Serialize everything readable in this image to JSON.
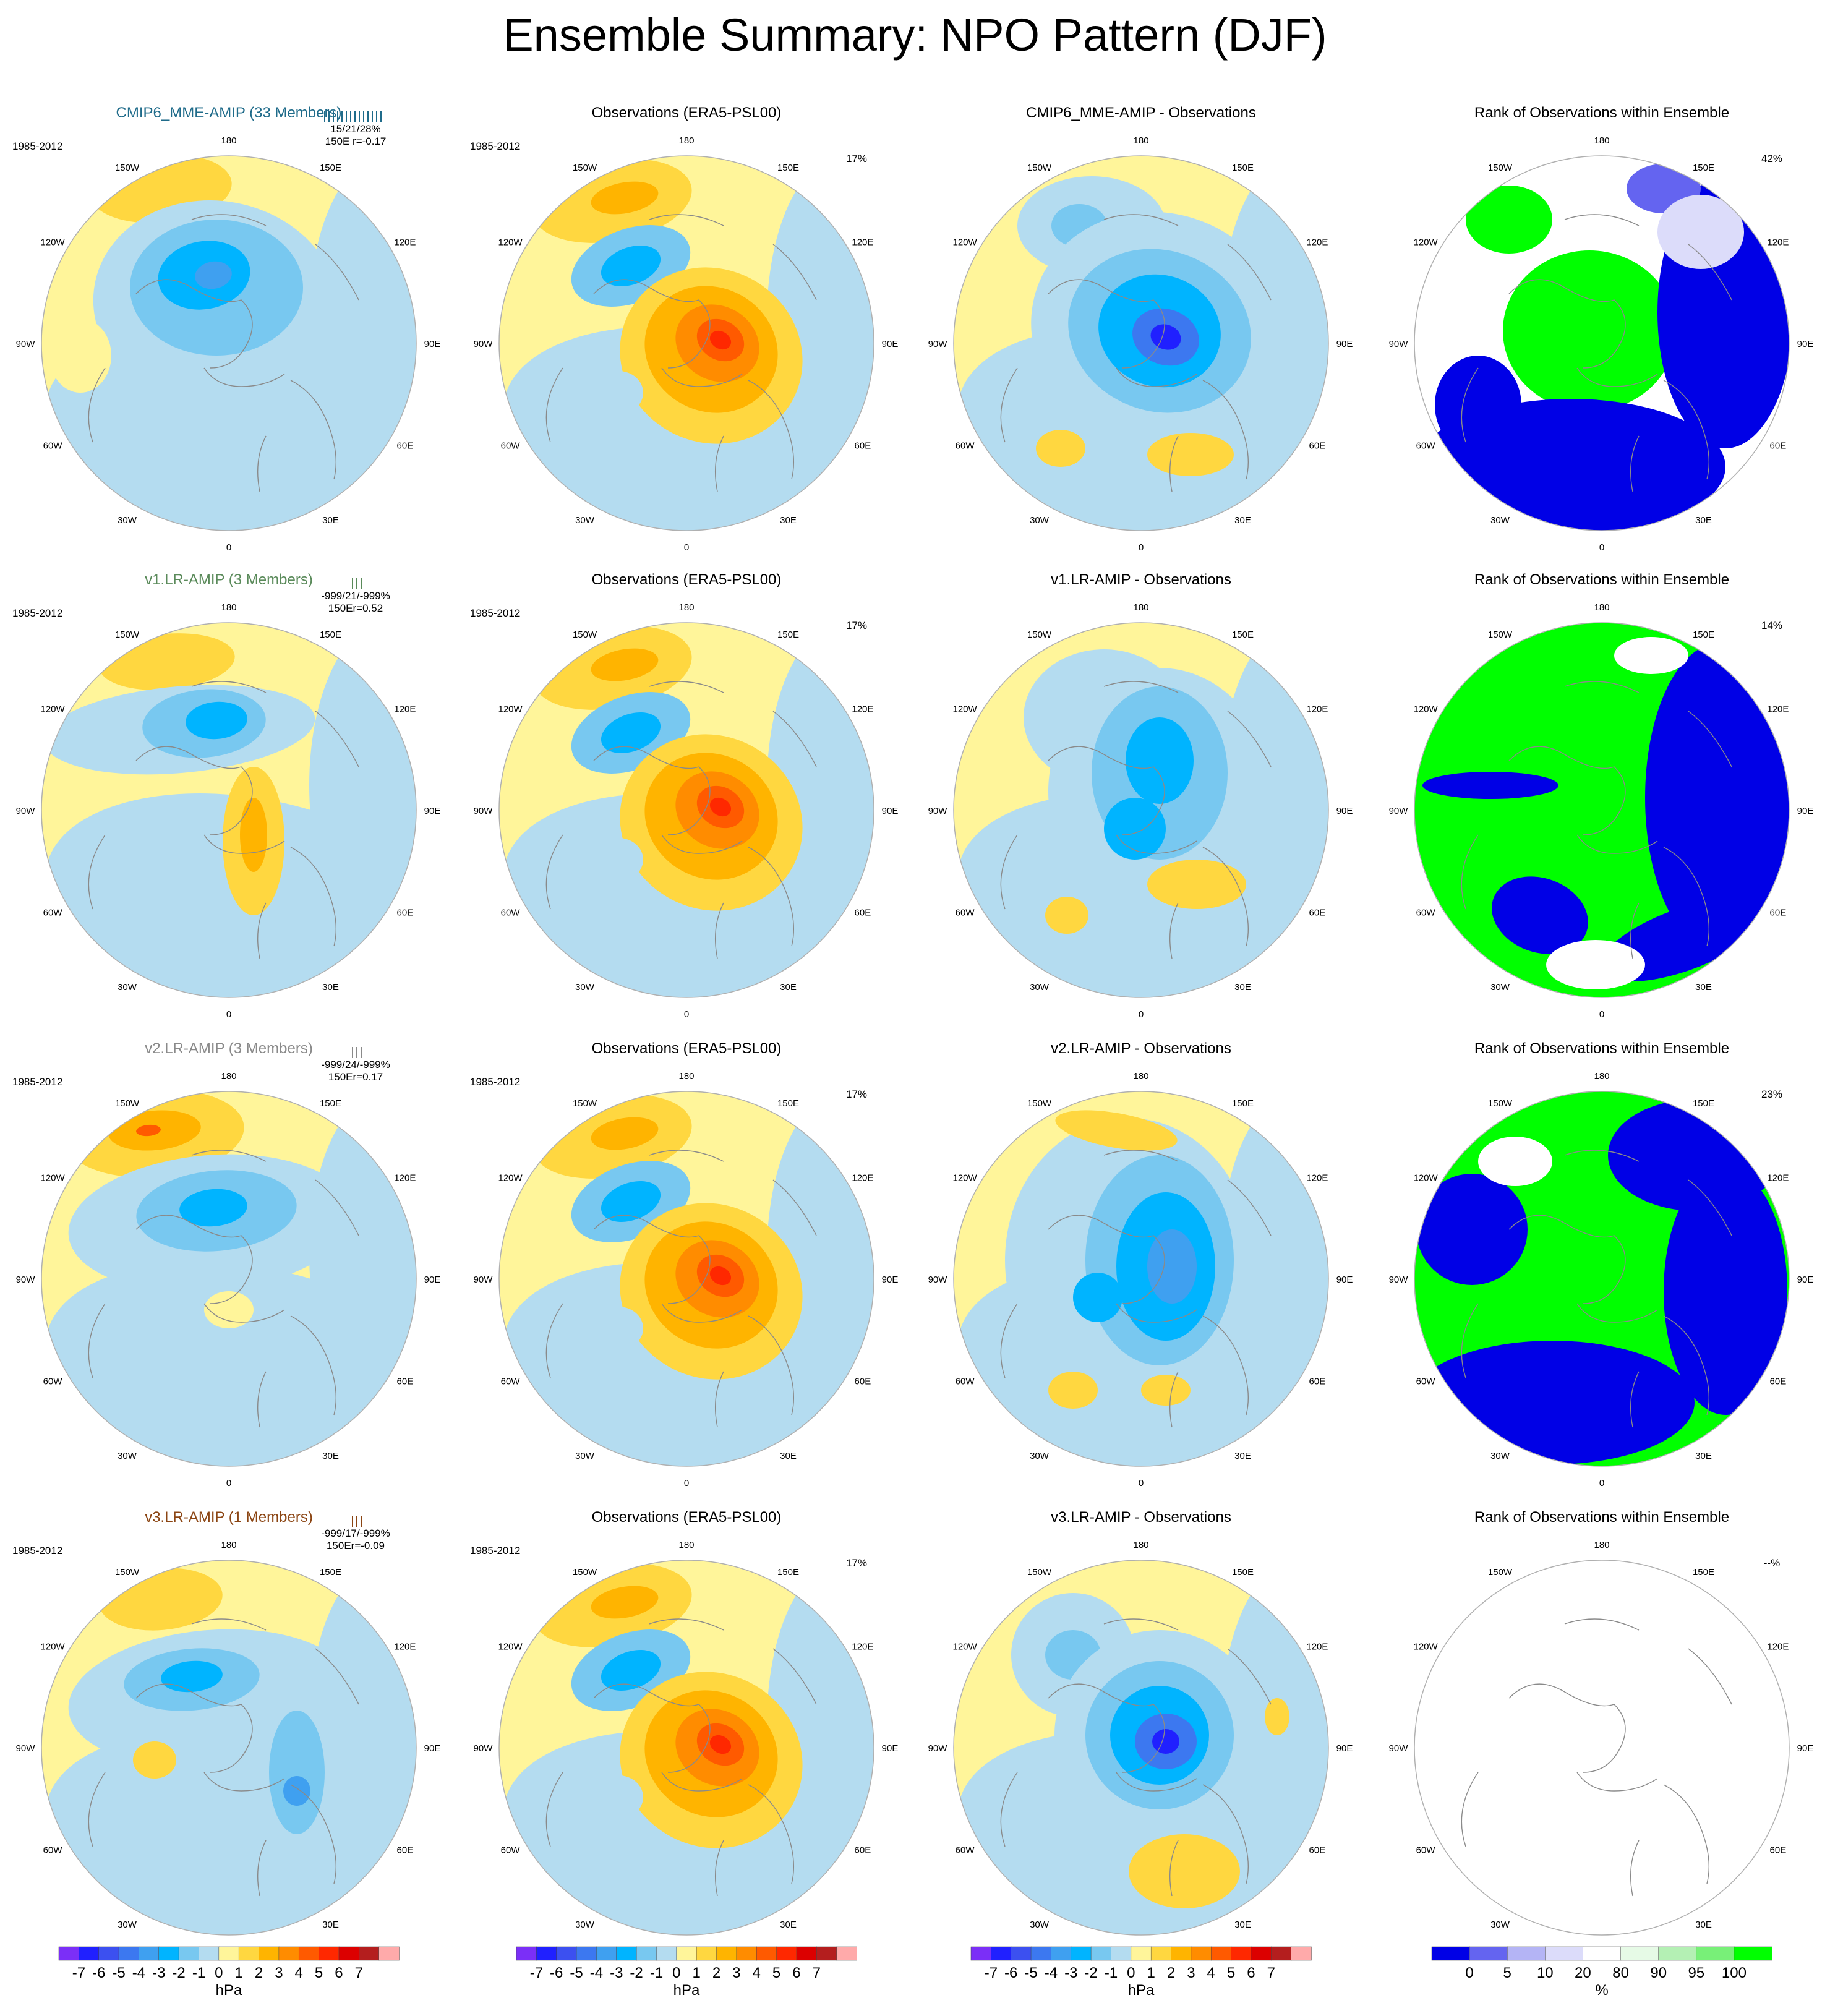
{
  "title": "Ensemble Summary: NPO Pattern (DJF)",
  "lon_labels": [
    "180",
    "150E",
    "120E",
    "90E",
    "60E",
    "30E",
    "0",
    "30W",
    "60W",
    "90W",
    "120W",
    "150W"
  ],
  "colors": {
    "model_title_0": "#1f6b8a",
    "model_title_1": "#5a8a5a",
    "model_title_2": "#8a8a8a",
    "model_title_3": "#8b4513",
    "contour_scale": [
      "#7b2ff7",
      "#2020ff",
      "#3c50f0",
      "#3c78f0",
      "#3fa0f0",
      "#00b4ff",
      "#78c8f0",
      "#b4dcf0",
      "#fff59a",
      "#ffd740",
      "#ffb400",
      "#ff8c00",
      "#ff5a00",
      "#ff2800",
      "#dc0000",
      "#b41e1e",
      "#ffaaaa"
    ],
    "rank_scale": [
      "#0000e6",
      "#6464f0",
      "#b4b4f5",
      "#dcdcfa",
      "#ffffff",
      "#e6fae6",
      "#b4f0b4",
      "#78f078",
      "#00ff00"
    ]
  },
  "rows": [
    {
      "model_title": "CMIP6_MME-AMIP (33 Members)",
      "period": "1985-2012",
      "stats": "15/21/28%",
      "stats2": "150E    r=-0.17",
      "obs_title": "Observations (ERA5-PSL00)",
      "obs_period": "1985-2012",
      "obs_pct": "17%",
      "diff_title": "CMIP6_MME-AMIP - Observations",
      "rank_title": "Rank of Observations within Ensemble",
      "rank_pct": "42%"
    },
    {
      "model_title": "v1.LR-AMIP (3 Members)",
      "period": "1985-2012",
      "stats": "-999/21/-999%",
      "stats2": "150Er=0.52",
      "obs_title": "Observations (ERA5-PSL00)",
      "obs_period": "1985-2012",
      "obs_pct": "17%",
      "diff_title": "v1.LR-AMIP - Observations",
      "rank_title": "Rank of Observations within Ensemble",
      "rank_pct": "14%"
    },
    {
      "model_title": "v2.LR-AMIP (3 Members)",
      "period": "1985-2012",
      "stats": "-999/24/-999%",
      "stats2": "150Er=0.17",
      "obs_title": "Observations (ERA5-PSL00)",
      "obs_period": "1985-2012",
      "obs_pct": "17%",
      "diff_title": "v2.LR-AMIP - Observations",
      "rank_title": "Rank of Observations within Ensemble",
      "rank_pct": "23%"
    },
    {
      "model_title": "v3.LR-AMIP (1 Members)",
      "period": "1985-2012",
      "stats": "-999/17/-999%",
      "stats2": "150Er=-0.09",
      "obs_title": "Observations (ERA5-PSL00)",
      "obs_period": "1985-2012",
      "obs_pct": "17%",
      "diff_title": "v3.LR-AMIP - Observations",
      "rank_title": "Rank of Observations within Ensemble",
      "rank_pct": "--%"
    }
  ],
  "colorbars": [
    {
      "labels": [
        "-7",
        "-6",
        "-5",
        "-4",
        "-3",
        "-2",
        "-1",
        "0",
        "1",
        "2",
        "3",
        "4",
        "5",
        "6",
        "7"
      ],
      "unit": "hPa"
    },
    {
      "labels": [
        "-7",
        "-6",
        "-5",
        "-4",
        "-3",
        "-2",
        "-1",
        "0",
        "1",
        "2",
        "3",
        "4",
        "5",
        "6",
        "7"
      ],
      "unit": "hPa"
    },
    {
      "labels": [
        "-7",
        "-6",
        "-5",
        "-4",
        "-3",
        "-2",
        "-1",
        "0",
        "1",
        "2",
        "3",
        "4",
        "5",
        "6",
        "7"
      ],
      "unit": "hPa"
    },
    {
      "labels": [
        "0",
        "5",
        "10",
        "20",
        "80",
        "90",
        "95",
        "100"
      ],
      "unit": "%"
    }
  ],
  "chart_data": {
    "type": "heatmap",
    "title": "Ensemble Summary: NPO Pattern (DJF)",
    "projection": "north polar stereographic",
    "contour_levels_hPa": [
      -7,
      -6,
      -5,
      -4,
      -3,
      -2,
      -1,
      0,
      1,
      2,
      3,
      4,
      5,
      6,
      7
    ],
    "rank_levels_pct": [
      0,
      5,
      10,
      20,
      80,
      90,
      95,
      100
    ],
    "panels": [
      {
        "row": 0,
        "col": 0,
        "name": "CMIP6_MME-AMIP (33 Members)",
        "pattern_corr": -0.17
      },
      {
        "row": 0,
        "col": 1,
        "name": "Observations (ERA5-PSL00)",
        "explained_variance_pct": 17
      },
      {
        "row": 0,
        "col": 2,
        "name": "CMIP6_MME-AMIP - Observations"
      },
      {
        "row": 0,
        "col": 3,
        "name": "Rank of Observations within Ensemble",
        "pct": 42
      },
      {
        "row": 1,
        "col": 0,
        "name": "v1.LR-AMIP (3 Members)",
        "pattern_corr": 0.52
      },
      {
        "row": 1,
        "col": 1,
        "name": "Observations (ERA5-PSL00)",
        "explained_variance_pct": 17
      },
      {
        "row": 1,
        "col": 2,
        "name": "v1.LR-AMIP - Observations"
      },
      {
        "row": 1,
        "col": 3,
        "name": "Rank of Observations within Ensemble",
        "pct": 14
      },
      {
        "row": 2,
        "col": 0,
        "name": "v2.LR-AMIP (3 Members)",
        "pattern_corr": 0.17
      },
      {
        "row": 2,
        "col": 1,
        "name": "Observations (ERA5-PSL00)",
        "explained_variance_pct": 17
      },
      {
        "row": 2,
        "col": 2,
        "name": "v2.LR-AMIP - Observations"
      },
      {
        "row": 2,
        "col": 3,
        "name": "Rank of Observations within Ensemble",
        "pct": 23
      },
      {
        "row": 3,
        "col": 0,
        "name": "v3.LR-AMIP (1 Members)",
        "pattern_corr": -0.09
      },
      {
        "row": 3,
        "col": 1,
        "name": "Observations (ERA5-PSL00)",
        "explained_variance_pct": 17
      },
      {
        "row": 3,
        "col": 2,
        "name": "v3.LR-AMIP - Observations"
      },
      {
        "row": 3,
        "col": 3,
        "name": "Rank of Observations within Ensemble",
        "pct": null
      }
    ]
  }
}
